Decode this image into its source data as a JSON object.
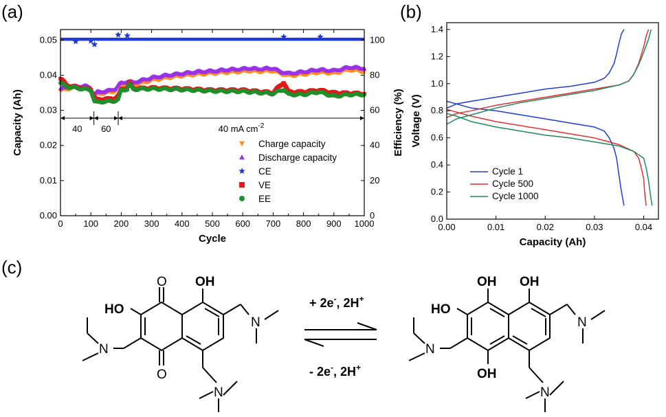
{
  "panels": {
    "a": "(a)",
    "b": "(b)",
    "c": "(c)"
  },
  "chart_data": [
    {
      "id": "a",
      "type": "scatter",
      "xlabel": "Cycle",
      "ylabel": "Capacity (Ah)",
      "y2label": "Efficiency (%)",
      "xlim": [
        0,
        1000
      ],
      "ylim": [
        0,
        0.053
      ],
      "y2lim": [
        0,
        106
      ],
      "xticks": [
        0,
        100,
        200,
        300,
        400,
        500,
        600,
        700,
        800,
        900,
        1000
      ],
      "yticks": [
        0.0,
        0.01,
        0.02,
        0.03,
        0.04,
        0.05
      ],
      "y2ticks": [
        0,
        20,
        40,
        60,
        80,
        100
      ],
      "legend_position": "bottom-right",
      "annotations": [
        {
          "text": "40",
          "x_from": 0,
          "x_to": 110
        },
        {
          "text": "60",
          "x_from": 110,
          "x_to": 190
        },
        {
          "text": "40 mA cm",
          "sup": "-2",
          "x_from": 190,
          "x_to": 1000
        }
      ],
      "series": [
        {
          "name": "Charge capacity",
          "axis": "left",
          "color": "#ff8c1a",
          "marker": "triangle-down",
          "x": [
            0,
            20,
            40,
            60,
            80,
            100,
            110,
            120,
            140,
            160,
            180,
            190,
            200,
            220,
            240,
            260,
            300,
            350,
            400,
            450,
            500,
            550,
            600,
            620,
            650,
            700,
            720,
            750,
            800,
            850,
            900,
            950,
            1000
          ],
          "y": [
            0.0355,
            0.036,
            0.0363,
            0.0365,
            0.0366,
            0.0362,
            0.034,
            0.0345,
            0.0348,
            0.035,
            0.0355,
            0.0365,
            0.037,
            0.0372,
            0.037,
            0.0375,
            0.0385,
            0.0392,
            0.0398,
            0.0402,
            0.0405,
            0.0408,
            0.041,
            0.0412,
            0.041,
            0.0412,
            0.0405,
            0.0398,
            0.0402,
            0.0408,
            0.0405,
            0.0415,
            0.041
          ]
        },
        {
          "name": "Discharge capacity",
          "axis": "left",
          "color": "#9a30e8",
          "marker": "triangle-up",
          "x": [
            0,
            20,
            40,
            60,
            80,
            100,
            110,
            120,
            140,
            160,
            180,
            190,
            200,
            220,
            240,
            260,
            300,
            350,
            400,
            450,
            500,
            550,
            600,
            620,
            650,
            700,
            720,
            750,
            800,
            850,
            900,
            950,
            1000
          ],
          "y": [
            0.0362,
            0.0366,
            0.0368,
            0.0369,
            0.0369,
            0.0366,
            0.0345,
            0.0352,
            0.0354,
            0.0356,
            0.0362,
            0.0372,
            0.0378,
            0.0382,
            0.038,
            0.0384,
            0.0393,
            0.04,
            0.0405,
            0.041,
            0.0412,
            0.0416,
            0.0418,
            0.042,
            0.0418,
            0.042,
            0.0412,
            0.0405,
            0.041,
            0.0416,
            0.0413,
            0.0423,
            0.042
          ]
        },
        {
          "name": "CE",
          "axis": "right",
          "color": "#1f3adb",
          "marker": "star",
          "x": [
            0,
            50,
            60,
            80,
            100,
            112,
            120,
            190,
            200,
            220,
            230,
            300,
            400,
            500,
            600,
            700,
            735,
            800,
            855,
            900,
            1000
          ],
          "y": [
            100.5,
            99.2,
            100.4,
            100.3,
            99.5,
            97.5,
            100.5,
            103,
            100.8,
            102.5,
            100,
            100.5,
            100.5,
            100.6,
            100.6,
            100.7,
            101.8,
            100.6,
            101.8,
            100.5,
            100.5
          ]
        },
        {
          "name": "VE",
          "axis": "right",
          "color": "#e01b1b",
          "marker": "square",
          "x": [
            0,
            20,
            40,
            60,
            80,
            100,
            112,
            120,
            140,
            160,
            180,
            190,
            200,
            220,
            225,
            240,
            300,
            400,
            500,
            600,
            700,
            735,
            750,
            800,
            850,
            900,
            1000
          ],
          "y": [
            78,
            74.5,
            73.5,
            73,
            72.5,
            72,
            67,
            66,
            66.5,
            66.5,
            67,
            68,
            72,
            73,
            76,
            72.3,
            72.8,
            72.3,
            71.5,
            71.5,
            70,
            76,
            70.5,
            70.5,
            71.5,
            70,
            69.5
          ]
        },
        {
          "name": "EE",
          "axis": "right",
          "color": "#1e8f2a",
          "marker": "circle",
          "x": [
            0,
            20,
            40,
            60,
            80,
            100,
            112,
            120,
            140,
            160,
            180,
            190,
            200,
            220,
            225,
            240,
            300,
            400,
            500,
            600,
            700,
            735,
            750,
            800,
            850,
            900,
            950,
            1000
          ],
          "y": [
            75.5,
            73.5,
            73,
            72.5,
            72,
            71.5,
            65,
            64.5,
            65,
            65,
            65.5,
            66,
            71.5,
            72,
            75,
            72,
            72.3,
            71.8,
            71,
            70.8,
            69.5,
            72,
            69,
            69,
            70.5,
            68,
            69,
            69
          ]
        }
      ]
    },
    {
      "id": "b",
      "type": "line",
      "xlabel": "Capacity (Ah)",
      "ylabel": "Voltage (V)",
      "xlim": [
        0,
        0.043
      ],
      "ylim": [
        0,
        1.45
      ],
      "xticks": [
        0.0,
        0.01,
        0.02,
        0.03,
        0.04
      ],
      "yticks": [
        0.0,
        0.2,
        0.4,
        0.6,
        0.8,
        1.0,
        1.2,
        1.4
      ],
      "legend_position": "bottom-left",
      "series": [
        {
          "name": "Cycle 1",
          "color": "#1f3adb",
          "charge": {
            "x": [
              0,
              0.002,
              0.005,
              0.01,
              0.015,
              0.02,
              0.025,
              0.03,
              0.032,
              0.033,
              0.034,
              0.0345,
              0.035,
              0.0355,
              0.036
            ],
            "y": [
              0.82,
              0.85,
              0.87,
              0.9,
              0.93,
              0.96,
              0.98,
              1.01,
              1.04,
              1.08,
              1.15,
              1.22,
              1.3,
              1.37,
              1.4
            ]
          },
          "discharge": {
            "x": [
              0,
              0.002,
              0.005,
              0.01,
              0.015,
              0.02,
              0.025,
              0.03,
              0.032,
              0.033,
              0.034,
              0.0345,
              0.035,
              0.0355,
              0.036
            ],
            "y": [
              0.87,
              0.85,
              0.82,
              0.8,
              0.77,
              0.74,
              0.71,
              0.68,
              0.65,
              0.6,
              0.52,
              0.45,
              0.32,
              0.2,
              0.1
            ]
          }
        },
        {
          "name": "Cycle 500",
          "color": "#e03030",
          "charge": {
            "x": [
              0,
              0.002,
              0.005,
              0.01,
              0.015,
              0.02,
              0.025,
              0.03,
              0.035,
              0.037,
              0.038,
              0.039,
              0.04,
              0.0405,
              0.041
            ],
            "y": [
              0.75,
              0.78,
              0.8,
              0.84,
              0.87,
              0.9,
              0.93,
              0.96,
              0.99,
              1.02,
              1.07,
              1.15,
              1.27,
              1.35,
              1.4
            ]
          },
          "discharge": {
            "x": [
              0,
              0.002,
              0.005,
              0.01,
              0.015,
              0.02,
              0.025,
              0.03,
              0.035,
              0.038,
              0.039,
              0.0395,
              0.04,
              0.0402,
              0.0405
            ],
            "y": [
              0.81,
              0.79,
              0.76,
              0.72,
              0.69,
              0.66,
              0.63,
              0.6,
              0.55,
              0.5,
              0.45,
              0.38,
              0.3,
              0.2,
              0.1
            ]
          }
        },
        {
          "name": "Cycle 1000",
          "color": "#1e8a5a",
          "charge": {
            "x": [
              0,
              0.002,
              0.005,
              0.01,
              0.015,
              0.02,
              0.025,
              0.03,
              0.035,
              0.037,
              0.038,
              0.039,
              0.04,
              0.041,
              0.0415
            ],
            "y": [
              0.7,
              0.74,
              0.77,
              0.82,
              0.86,
              0.89,
              0.92,
              0.95,
              0.99,
              1.02,
              1.07,
              1.14,
              1.23,
              1.33,
              1.4
            ]
          },
          "discharge": {
            "x": [
              0,
              0.002,
              0.005,
              0.01,
              0.015,
              0.02,
              0.025,
              0.03,
              0.035,
              0.038,
              0.04,
              0.0405,
              0.041,
              0.0413,
              0.0417
            ],
            "y": [
              0.78,
              0.76,
              0.72,
              0.68,
              0.65,
              0.62,
              0.6,
              0.57,
              0.54,
              0.5,
              0.45,
              0.38,
              0.28,
              0.2,
              0.1
            ]
          }
        }
      ]
    }
  ],
  "reaction": {
    "forward_label": "+ 2e",
    "forward_sup1": "-",
    "forward_mid": ", 2H",
    "forward_sup2": "+",
    "reverse_label": "- 2e",
    "reverse_sup1": "-",
    "reverse_mid": ", 2H",
    "reverse_sup2": "+",
    "reactant": {
      "o_top": "O",
      "o_bottom": "O",
      "oh": "OH",
      "ho": "HO",
      "n": "N"
    },
    "product": {
      "oh1": "OH",
      "oh2": "OH",
      "ho": "HO",
      "oh_bottom": "OH",
      "n": "N"
    }
  }
}
